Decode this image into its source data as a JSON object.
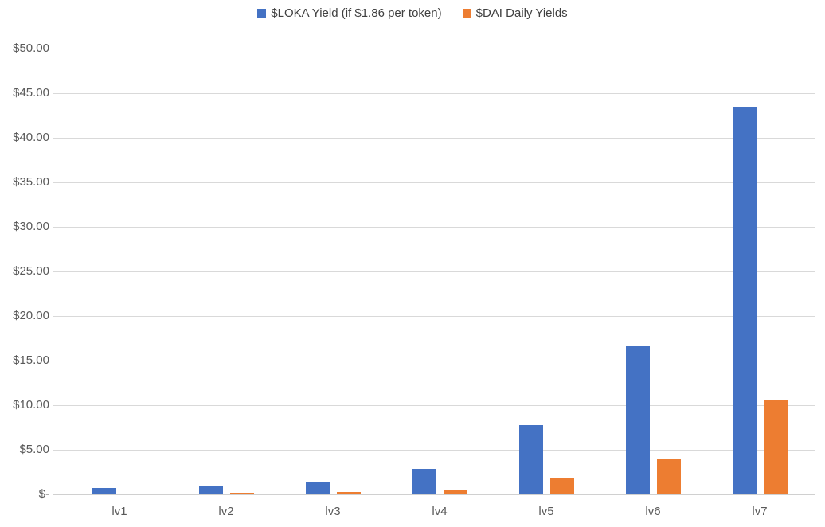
{
  "chart_data": {
    "type": "bar",
    "title": "",
    "xlabel": "",
    "ylabel": "",
    "categories": [
      "lv1",
      "lv2",
      "lv3",
      "lv4",
      "lv5",
      "lv6",
      "lv7"
    ],
    "series": [
      {
        "name": "$LOKA Yield (if $1.86 per token)",
        "color": "#4472C4",
        "values": [
          0.7,
          0.95,
          1.3,
          2.9,
          7.8,
          16.65,
          43.4
        ]
      },
      {
        "name": "$DAI Daily Yields",
        "color": "#ED7D31",
        "values": [
          0.05,
          0.15,
          0.25,
          0.55,
          1.8,
          3.95,
          10.5
        ]
      }
    ],
    "ylim": [
      0,
      50
    ],
    "y_ticks": [
      {
        "value": 0,
        "label": "$-"
      },
      {
        "value": 5,
        "label": "$5.00"
      },
      {
        "value": 10,
        "label": "$10.00"
      },
      {
        "value": 15,
        "label": "$15.00"
      },
      {
        "value": 20,
        "label": "$20.00"
      },
      {
        "value": 25,
        "label": "$25.00"
      },
      {
        "value": 30,
        "label": "$30.00"
      },
      {
        "value": 35,
        "label": "$35.00"
      },
      {
        "value": 40,
        "label": "$40.00"
      },
      {
        "value": 45,
        "label": "$45.00"
      },
      {
        "value": 50,
        "label": "$50.00"
      }
    ],
    "grid": true,
    "legend_position": "top-center",
    "colors": {
      "gridline": "#d9d9d9",
      "axis_line": "#d0d0d0",
      "tick_label": "#595959",
      "legend_text": "#404040",
      "background": "#ffffff"
    }
  }
}
